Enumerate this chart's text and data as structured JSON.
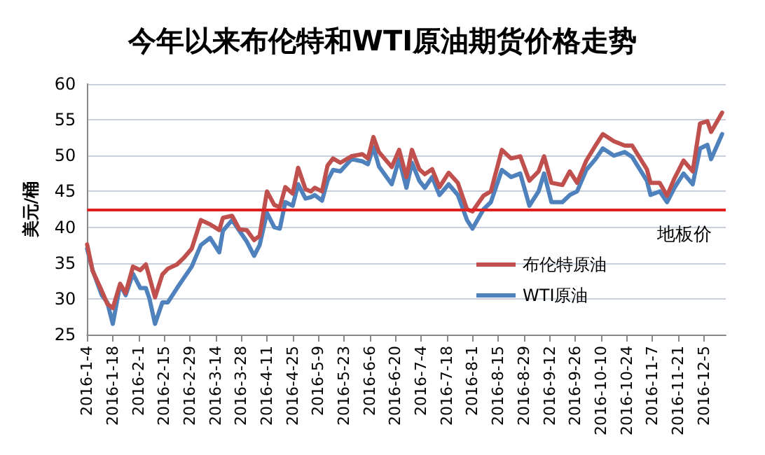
{
  "chart_data": {
    "type": "line",
    "title": "今年以来布伦特和WTI原油期货价格走势",
    "ylabel": "美元/桶",
    "x": [
      "2016-01-04",
      "2016-01-07",
      "2016-01-12",
      "2016-01-15",
      "2016-01-18",
      "2016-01-22",
      "2016-01-25",
      "2016-01-29",
      "2016-02-02",
      "2016-02-05",
      "2016-02-07",
      "2016-02-10",
      "2016-02-14",
      "2016-02-17",
      "2016-02-22",
      "2016-02-26",
      "2016-03-01",
      "2016-03-06",
      "2016-03-11",
      "2016-03-16",
      "2016-03-18",
      "2016-03-23",
      "2016-03-27",
      "2016-03-31",
      "2016-04-04",
      "2016-04-07",
      "2016-04-11",
      "2016-04-15",
      "2016-04-18",
      "2016-04-21",
      "2016-04-25",
      "2016-04-28",
      "2016-05-02",
      "2016-05-05",
      "2016-05-07",
      "2016-05-11",
      "2016-05-14",
      "2016-05-17",
      "2016-05-21",
      "2016-05-27",
      "2016-06-02",
      "2016-06-05",
      "2016-06-08",
      "2016-06-11",
      "2016-06-18",
      "2016-06-22",
      "2016-06-26",
      "2016-06-29",
      "2016-07-03",
      "2016-07-06",
      "2016-07-10",
      "2016-07-14",
      "2016-07-19",
      "2016-07-24",
      "2016-07-29",
      "2016-08-01",
      "2016-08-07",
      "2016-08-11",
      "2016-08-17",
      "2016-08-22",
      "2016-08-27",
      "2016-09-01",
      "2016-09-06",
      "2016-09-09",
      "2016-09-13",
      "2016-09-19",
      "2016-09-23",
      "2016-09-27",
      "2016-10-02",
      "2016-10-07",
      "2016-10-11",
      "2016-10-17",
      "2016-10-23",
      "2016-10-27",
      "2016-11-04",
      "2016-11-06",
      "2016-11-11",
      "2016-11-15",
      "2016-11-19",
      "2016-11-24",
      "2016-11-29",
      "2016-12-03",
      "2016-12-07",
      "2016-12-09",
      "2016-12-15"
    ],
    "series": [
      {
        "name": "布伦特原油",
        "color": "#c0504d",
        "values": [
          37.6,
          33.9,
          31.1,
          29.3,
          28.7,
          32.1,
          30.8,
          34.5,
          34.0,
          34.8,
          33.0,
          30.2,
          33.4,
          34.2,
          34.8,
          35.8,
          37.0,
          41.0,
          40.4,
          39.6,
          41.3,
          41.6,
          39.7,
          39.6,
          38.2,
          38.8,
          45.0,
          43.1,
          42.8,
          45.6,
          44.7,
          48.3,
          45.3,
          45.0,
          45.5,
          45.0,
          48.6,
          49.6,
          49.0,
          49.9,
          50.2,
          49.6,
          52.6,
          50.5,
          48.4,
          50.8,
          47.0,
          50.8,
          48.1,
          47.4,
          48.1,
          45.6,
          47.6,
          46.2,
          42.5,
          42.2,
          44.4,
          45.0,
          50.8,
          49.6,
          49.9,
          46.5,
          47.8,
          49.9,
          46.2,
          45.9,
          47.8,
          46.2,
          49.3,
          51.4,
          53.0,
          52.0,
          51.4,
          51.4,
          48.1,
          46.2,
          46.2,
          44.4,
          46.8,
          49.3,
          47.8,
          54.5,
          54.8,
          53.3,
          56.0
        ]
      },
      {
        "name": "WTI原油",
        "color": "#4f81bd",
        "values": [
          37.0,
          34.0,
          30.5,
          29.5,
          26.5,
          32.0,
          30.5,
          33.5,
          31.5,
          31.5,
          30.0,
          26.5,
          29.5,
          29.5,
          31.5,
          33.0,
          34.5,
          37.5,
          38.5,
          36.5,
          39.5,
          41.0,
          39.5,
          38.0,
          36.0,
          37.5,
          42.0,
          40.0,
          39.8,
          43.5,
          43.0,
          46.0,
          44.0,
          44.2,
          44.5,
          43.7,
          46.5,
          48.0,
          47.8,
          49.5,
          49.2,
          48.8,
          51.2,
          48.5,
          46.0,
          49.5,
          45.5,
          49.0,
          46.5,
          45.5,
          47.0,
          44.5,
          46.0,
          44.5,
          41.0,
          39.8,
          42.5,
          43.5,
          48.0,
          47.0,
          47.5,
          43.0,
          45.0,
          47.5,
          43.5,
          43.5,
          44.5,
          45.0,
          48.0,
          49.5,
          51.0,
          50.0,
          50.5,
          49.8,
          46.5,
          44.5,
          45.0,
          43.5,
          45.5,
          47.5,
          46.0,
          51.0,
          51.5,
          49.5,
          53.0
        ]
      }
    ],
    "xlim": [
      "2016-01-04",
      "2016-12-17"
    ],
    "xticks": [
      {
        "value": "2016-01-04",
        "label": "2016-1-4"
      },
      {
        "value": "2016-01-18",
        "label": "2016-1-18"
      },
      {
        "value": "2016-02-01",
        "label": "2016-2-1"
      },
      {
        "value": "2016-02-15",
        "label": "2016-2-15"
      },
      {
        "value": "2016-02-29",
        "label": "2016-2-29"
      },
      {
        "value": "2016-03-14",
        "label": "2016-3-14"
      },
      {
        "value": "2016-03-28",
        "label": "2016-3-28"
      },
      {
        "value": "2016-04-11",
        "label": "2016-4-11"
      },
      {
        "value": "2016-04-25",
        "label": "2016-4-25"
      },
      {
        "value": "2016-05-09",
        "label": "2016-5-9"
      },
      {
        "value": "2016-05-23",
        "label": "2016-5-23"
      },
      {
        "value": "2016-06-06",
        "label": "2016-6-6"
      },
      {
        "value": "2016-06-20",
        "label": "2016-6-20"
      },
      {
        "value": "2016-07-04",
        "label": "2016-7-4"
      },
      {
        "value": "2016-07-18",
        "label": "2016-7-18"
      },
      {
        "value": "2016-08-01",
        "label": "2016-8-1"
      },
      {
        "value": "2016-08-15",
        "label": "2016-8-15"
      },
      {
        "value": "2016-08-29",
        "label": "2016-8-29"
      },
      {
        "value": "2016-09-12",
        "label": "2016-9-12"
      },
      {
        "value": "2016-09-26",
        "label": "2016-9-26"
      },
      {
        "value": "2016-10-10",
        "label": "2016-10-10"
      },
      {
        "value": "2016-10-24",
        "label": "2016-10-24"
      },
      {
        "value": "2016-11-07",
        "label": "2016-11-7"
      },
      {
        "value": "2016-11-21",
        "label": "2016-11-21"
      },
      {
        "value": "2016-12-05",
        "label": "2016-12-5"
      }
    ],
    "ylim": [
      25,
      60
    ],
    "yticks": [
      25,
      30,
      35,
      40,
      45,
      50,
      55,
      60
    ],
    "ref_lines": [
      {
        "axis": "y",
        "value": 42.5,
        "label": "地板价",
        "color": "#e02020"
      }
    ],
    "grid": "y",
    "legend": "bottom right",
    "marker": "none",
    "line_style": "solid"
  }
}
